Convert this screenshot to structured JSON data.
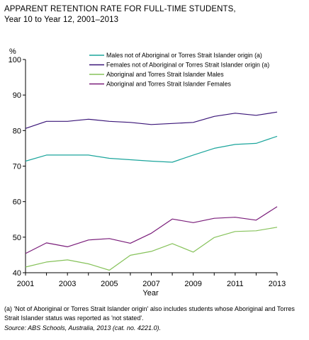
{
  "title": {
    "line1": "APPARENT RETENTION RATE FOR FULL-TIME STUDENTS,",
    "line2": "Year 10 to Year 12, 2001–2013"
  },
  "chart_data": {
    "type": "line",
    "title": "APPARENT RETENTION RATE FOR FULL-TIME STUDENTS, Year 10 to Year 12, 2001–2013",
    "xlabel": "Year",
    "ylabel": "%",
    "xlim": [
      2001,
      2013
    ],
    "ylim": [
      40,
      100
    ],
    "x_ticks": [
      2001,
      2003,
      2005,
      2007,
      2009,
      2011,
      2013
    ],
    "y_ticks": [
      40,
      50,
      60,
      70,
      80,
      90,
      100
    ],
    "grid": false,
    "legend_position": "top-right",
    "x": [
      2001,
      2002,
      2003,
      2004,
      2005,
      2006,
      2007,
      2008,
      2009,
      2010,
      2011,
      2012,
      2013
    ],
    "series": [
      {
        "name": "Males not of Aboriginal or Torres Strait Islander origin (a)",
        "color": "#1ba59c",
        "values": [
          71.4,
          73.1,
          73.1,
          73.1,
          72.2,
          71.8,
          71.4,
          71.1,
          73.1,
          75.0,
          76.1,
          76.4,
          78.4
        ]
      },
      {
        "name": "Females not of Aboriginal or Torres Strait Islander origin (a)",
        "color": "#3a1578",
        "values": [
          80.6,
          82.6,
          82.6,
          83.2,
          82.6,
          82.3,
          81.7,
          82.0,
          82.3,
          84.0,
          84.9,
          84.3,
          85.2
        ]
      },
      {
        "name": "Aboriginal and Torres Strait Islander Males",
        "color": "#86c25a",
        "values": [
          41.6,
          43.0,
          43.6,
          42.5,
          40.7,
          44.9,
          46.0,
          48.2,
          45.8,
          49.9,
          51.6,
          51.8,
          52.8
        ]
      },
      {
        "name": "Aboriginal and Torres Strait Islander Females",
        "color": "#7a1d7a",
        "values": [
          45.4,
          48.4,
          47.3,
          49.2,
          49.6,
          48.3,
          51.1,
          55.1,
          54.1,
          55.3,
          55.6,
          54.8,
          58.6
        ]
      }
    ]
  },
  "footnote": "(a) 'Not of Aboriginal or Torres Strait Islander origin' also includes students whose Aboriginal and Torres Strait Islander status was reported as 'not stated'.",
  "source": "Source: ABS Schools, Australia, 2013 (cat. no. 4221.0)."
}
